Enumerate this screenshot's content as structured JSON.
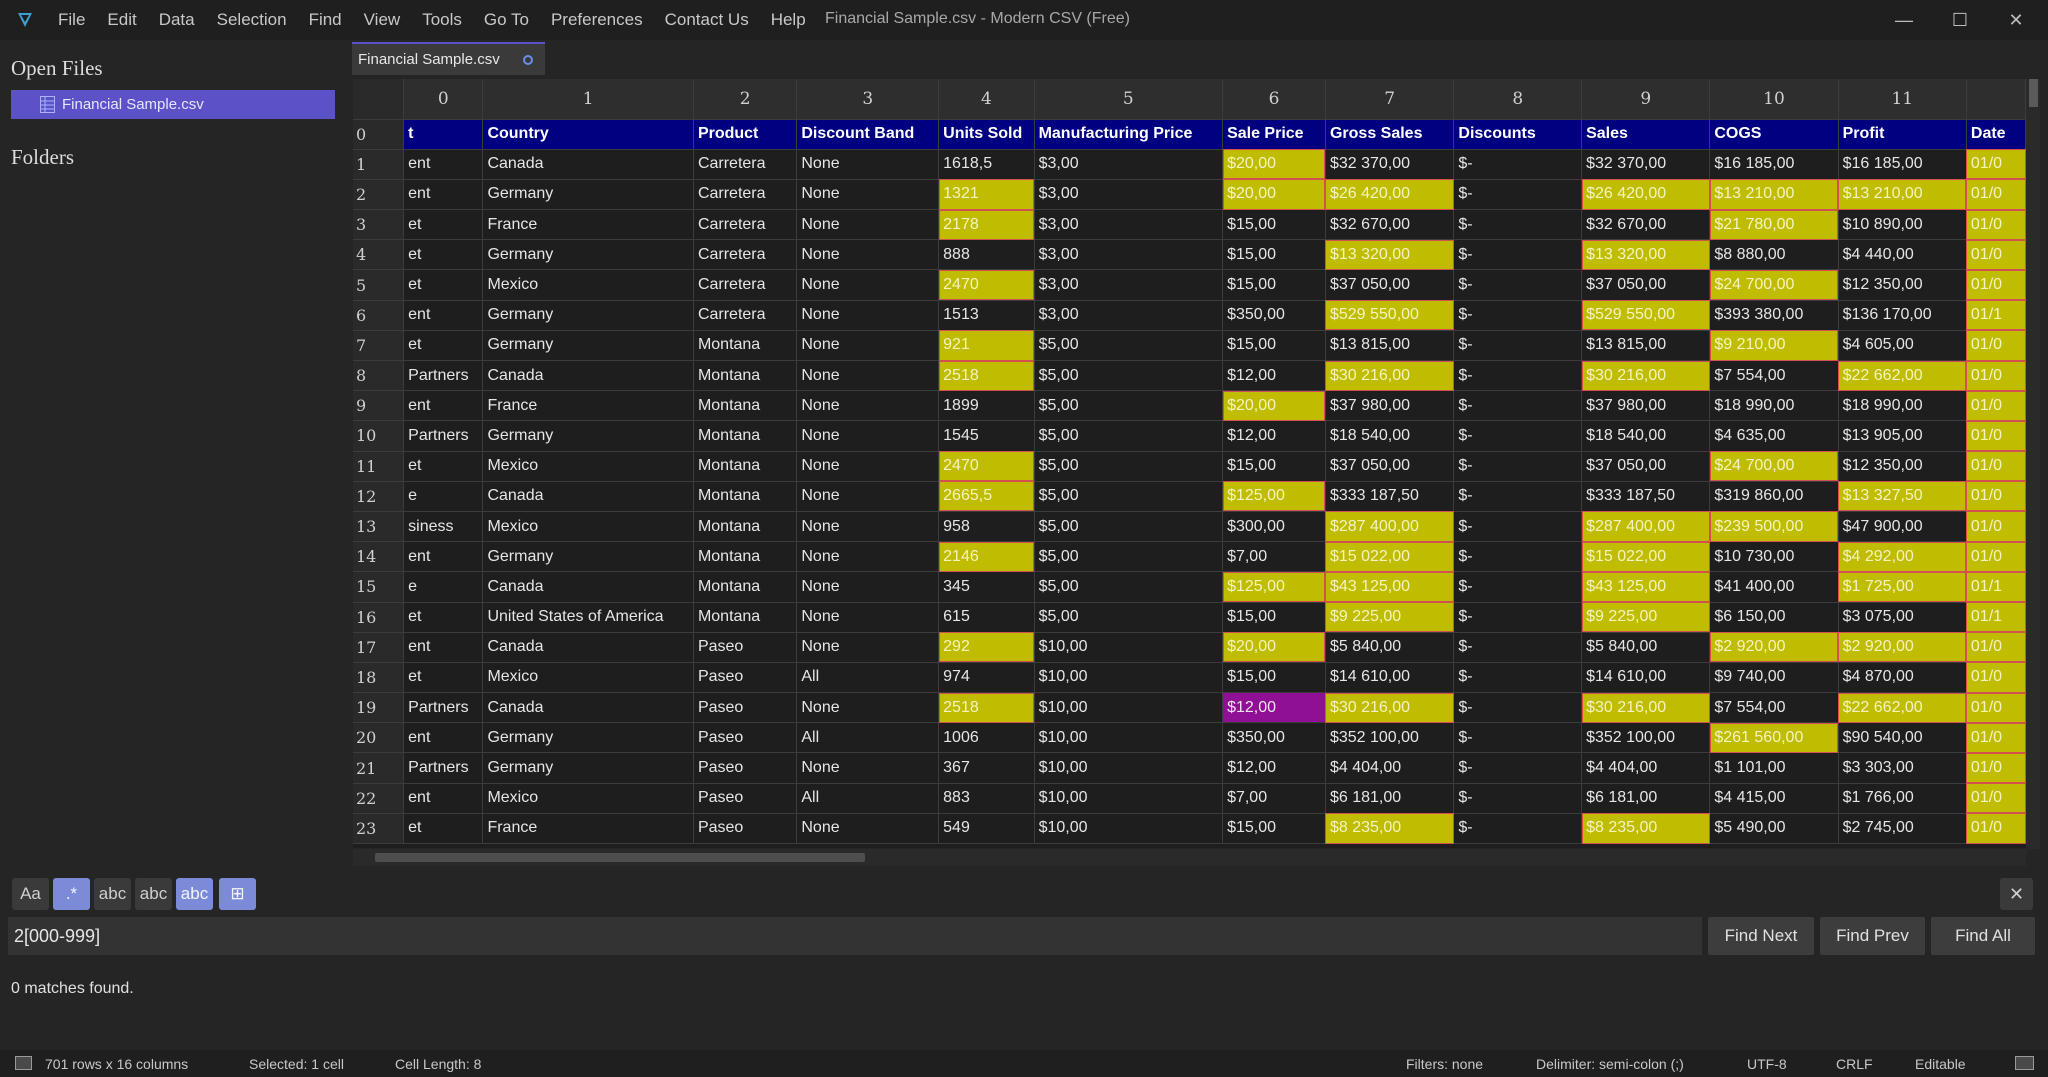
{
  "menu": [
    "File",
    "Edit",
    "Data",
    "Selection",
    "Find",
    "View",
    "Tools",
    "Go To",
    "Preferences",
    "Contact Us",
    "Help"
  ],
  "window_title": "Financial Sample.csv - Modern CSV (Free)",
  "window_controls": {
    "minimize": "—",
    "maximize": "☐",
    "close": "✕"
  },
  "sidebar": {
    "open_files_heading": "Open Files",
    "open_file": "Financial Sample.csv",
    "folders_heading": "Folders"
  },
  "tab": {
    "label": "Financial Sample.csv"
  },
  "grid": {
    "column_numbers": [
      "0",
      "1",
      "2",
      "3",
      "4",
      "5",
      "6",
      "7",
      "8",
      "9",
      "10",
      "11",
      ""
    ],
    "header_row": {
      "num": "0",
      "cells": [
        "t",
        "Country",
        "Product",
        "Discount Band",
        "Units Sold",
        "Manufacturing Price",
        "Sale Price",
        "Gross Sales",
        "Discounts",
        "Sales",
        "COGS",
        "Profit",
        "Date"
      ]
    },
    "rows": [
      {
        "num": "1",
        "cells": [
          "ent",
          "Canada",
          "Carretera",
          "None",
          "1618,5",
          "$3,00",
          "$20,00",
          "$32 370,00",
          "$-",
          "$32 370,00",
          "$16 185,00",
          "$16 185,00",
          "01/0"
        ],
        "hl": [
          6,
          12
        ]
      },
      {
        "num": "2",
        "cells": [
          "ent",
          "Germany",
          "Carretera",
          "None",
          "1321",
          "$3,00",
          "$20,00",
          "$26 420,00",
          "$-",
          "$26 420,00",
          "$13 210,00",
          "$13 210,00",
          "01/0"
        ],
        "hl": [
          4,
          6,
          7,
          9,
          10,
          11,
          12
        ]
      },
      {
        "num": "3",
        "cells": [
          "et",
          "France",
          "Carretera",
          "None",
          "2178",
          "$3,00",
          "$15,00",
          "$32 670,00",
          "$-",
          "$32 670,00",
          "$21 780,00",
          "$10 890,00",
          "01/0"
        ],
        "hl": [
          4,
          10,
          12
        ]
      },
      {
        "num": "4",
        "cells": [
          "et",
          "Germany",
          "Carretera",
          "None",
          "888",
          "$3,00",
          "$15,00",
          "$13 320,00",
          "$-",
          "$13 320,00",
          "$8 880,00",
          "$4 440,00",
          "01/0"
        ],
        "hl": [
          7,
          9,
          12
        ]
      },
      {
        "num": "5",
        "cells": [
          "et",
          "Mexico",
          "Carretera",
          "None",
          "2470",
          "$3,00",
          "$15,00",
          "$37 050,00",
          "$-",
          "$37 050,00",
          "$24 700,00",
          "$12 350,00",
          "01/0"
        ],
        "hl": [
          4,
          10,
          12
        ]
      },
      {
        "num": "6",
        "cells": [
          "ent",
          "Germany",
          "Carretera",
          "None",
          "1513",
          "$3,00",
          "$350,00",
          "$529 550,00",
          "$-",
          "$529 550,00",
          "$393 380,00",
          "$136 170,00",
          "01/1"
        ],
        "hl": [
          7,
          9,
          12
        ]
      },
      {
        "num": "7",
        "cells": [
          "et",
          "Germany",
          "Montana",
          "None",
          "921",
          "$5,00",
          "$15,00",
          "$13 815,00",
          "$-",
          "$13 815,00",
          "$9 210,00",
          "$4 605,00",
          "01/0"
        ],
        "hl": [
          4,
          10,
          12
        ]
      },
      {
        "num": "8",
        "cells": [
          "Partners",
          "Canada",
          "Montana",
          "None",
          "2518",
          "$5,00",
          "$12,00",
          "$30 216,00",
          "$-",
          "$30 216,00",
          "$7 554,00",
          "$22 662,00",
          "01/0"
        ],
        "hl": [
          4,
          7,
          9,
          11,
          12
        ]
      },
      {
        "num": "9",
        "cells": [
          "ent",
          "France",
          "Montana",
          "None",
          "1899",
          "$5,00",
          "$20,00",
          "$37 980,00",
          "$-",
          "$37 980,00",
          "$18 990,00",
          "$18 990,00",
          "01/0"
        ],
        "hl": [
          6,
          12
        ]
      },
      {
        "num": "10",
        "cells": [
          "Partners",
          "Germany",
          "Montana",
          "None",
          "1545",
          "$5,00",
          "$12,00",
          "$18 540,00",
          "$-",
          "$18 540,00",
          "$4 635,00",
          "$13 905,00",
          "01/0"
        ],
        "hl": [
          12
        ]
      },
      {
        "num": "11",
        "cells": [
          "et",
          "Mexico",
          "Montana",
          "None",
          "2470",
          "$5,00",
          "$15,00",
          "$37 050,00",
          "$-",
          "$37 050,00",
          "$24 700,00",
          "$12 350,00",
          "01/0"
        ],
        "hl": [
          4,
          10,
          12
        ]
      },
      {
        "num": "12",
        "cells": [
          "e",
          "Canada",
          "Montana",
          "None",
          "2665,5",
          "$5,00",
          "$125,00",
          "$333 187,50",
          "$-",
          "$333 187,50",
          "$319 860,00",
          "$13 327,50",
          "01/0"
        ],
        "hl": [
          4,
          6,
          11,
          12
        ]
      },
      {
        "num": "13",
        "cells": [
          "siness",
          "Mexico",
          "Montana",
          "None",
          "958",
          "$5,00",
          "$300,00",
          "$287 400,00",
          "$-",
          "$287 400,00",
          "$239 500,00",
          "$47 900,00",
          "01/0"
        ],
        "hl": [
          7,
          9,
          10,
          12
        ]
      },
      {
        "num": "14",
        "cells": [
          "ent",
          "Germany",
          "Montana",
          "None",
          "2146",
          "$5,00",
          "$7,00",
          "$15 022,00",
          "$-",
          "$15 022,00",
          "$10 730,00",
          "$4 292,00",
          "01/0"
        ],
        "hl": [
          4,
          7,
          9,
          11,
          12
        ]
      },
      {
        "num": "15",
        "cells": [
          "e",
          "Canada",
          "Montana",
          "None",
          "345",
          "$5,00",
          "$125,00",
          "$43 125,00",
          "$-",
          "$43 125,00",
          "$41 400,00",
          "$1 725,00",
          "01/1"
        ],
        "hl": [
          6,
          7,
          9,
          11,
          12
        ]
      },
      {
        "num": "16",
        "cells": [
          "et",
          "United States of America",
          "Montana",
          "None",
          "615",
          "$5,00",
          "$15,00",
          "$9 225,00",
          "$-",
          "$9 225,00",
          "$6 150,00",
          "$3 075,00",
          "01/1"
        ],
        "hl": [
          7,
          9,
          12
        ]
      },
      {
        "num": "17",
        "cells": [
          "ent",
          "Canada",
          "Paseo",
          "None",
          "292",
          "$10,00",
          "$20,00",
          "$5 840,00",
          "$-",
          "$5 840,00",
          "$2 920,00",
          "$2 920,00",
          "01/0"
        ],
        "hl": [
          4,
          6,
          10,
          11,
          12
        ]
      },
      {
        "num": "18",
        "cells": [
          "et",
          "Mexico",
          "Paseo",
          "All",
          "974",
          "$10,00",
          "$15,00",
          "$14 610,00",
          "$-",
          "$14 610,00",
          "$9 740,00",
          "$4 870,00",
          "01/0"
        ],
        "hl": [
          12
        ]
      },
      {
        "num": "19",
        "cells": [
          "Partners",
          "Canada",
          "Paseo",
          "None",
          "2518",
          "$10,00",
          "$12,00",
          "$30 216,00",
          "$-",
          "$30 216,00",
          "$7 554,00",
          "$22 662,00",
          "01/0"
        ],
        "hl": [
          4,
          7,
          9,
          11,
          12
        ],
        "pink": [
          6
        ]
      },
      {
        "num": "20",
        "cells": [
          "ent",
          "Germany",
          "Paseo",
          "All",
          "1006",
          "$10,00",
          "$350,00",
          "$352 100,00",
          "$-",
          "$352 100,00",
          "$261 560,00",
          "$90 540,00",
          "01/0"
        ],
        "hl": [
          10,
          12
        ]
      },
      {
        "num": "21",
        "cells": [
          "Partners",
          "Germany",
          "Paseo",
          "None",
          "367",
          "$10,00",
          "$12,00",
          "$4 404,00",
          "$-",
          "$4 404,00",
          "$1 101,00",
          "$3 303,00",
          "01/0"
        ],
        "hl": [
          12
        ]
      },
      {
        "num": "22",
        "cells": [
          "ent",
          "Mexico",
          "Paseo",
          "All",
          "883",
          "$10,00",
          "$7,00",
          "$6 181,00",
          "$-",
          "$6 181,00",
          "$4 415,00",
          "$1 766,00",
          "01/0"
        ],
        "hl": [
          12
        ]
      },
      {
        "num": "23",
        "cells": [
          "et",
          "France",
          "Paseo",
          "None",
          "549",
          "$10,00",
          "$15,00",
          "$8 235,00",
          "$-",
          "$8 235,00",
          "$5 490,00",
          "$2 745,00",
          "01/0"
        ],
        "hl": [
          7,
          9,
          12
        ]
      }
    ]
  },
  "find": {
    "options": [
      {
        "name": "match-case-icon",
        "glyph": "Aa",
        "active": false
      },
      {
        "name": "regex-icon",
        "glyph": ".*",
        "active": true
      },
      {
        "name": "whole-word-icon",
        "glyph": "abc",
        "active": false
      },
      {
        "name": "match-cell-icon",
        "glyph": "abc",
        "active": false
      },
      {
        "name": "in-selection-icon",
        "glyph": "abc",
        "active": true
      },
      {
        "name": "all-files-icon",
        "glyph": "⊞",
        "active": true
      }
    ],
    "query": "2[000-999]",
    "find_next": "Find Next",
    "find_prev": "Find Prev",
    "find_all": "Find All",
    "close": "✕",
    "result": "0 matches found."
  },
  "status": {
    "dimensions": "701 rows x 16 columns",
    "selected": "Selected: 1 cell",
    "cell_length": "Cell Length: 8",
    "filters": "Filters: none",
    "delimiter": "Delimiter: semi-colon (;)",
    "encoding": "UTF-8",
    "line_ending": "CRLF",
    "mode": "Editable"
  },
  "colors": {
    "accent": "#5b52c8",
    "header_row_bg": "#000080",
    "highlight": "#c0bd00",
    "selected_cell": "#8f0f95"
  }
}
